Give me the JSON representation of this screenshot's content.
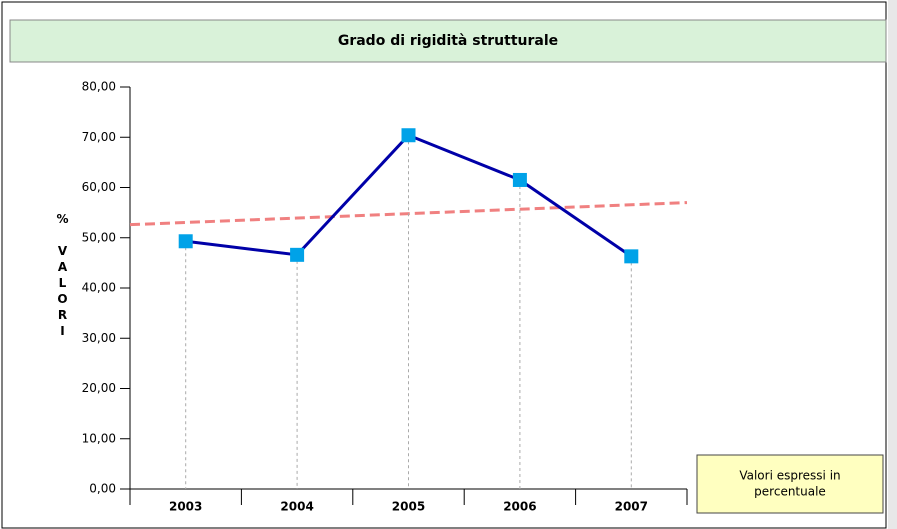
{
  "chart_data": {
    "type": "line",
    "title": "Grado di rigidità strutturale",
    "ylabel": "% VALORI",
    "categories": [
      "2003",
      "2004",
      "2005",
      "2006",
      "2007"
    ],
    "series": [
      {
        "color": "#0000a8",
        "marker_color": "#00a2e8",
        "values": [
          49.3,
          46.6,
          70.4,
          61.5,
          46.3
        ]
      }
    ],
    "trend_line": {
      "color": "#f08080",
      "values": [
        52.6,
        57.0
      ]
    },
    "ylim": [
      0,
      80
    ],
    "yticks": [
      {
        "value": 0,
        "label": "0,00"
      },
      {
        "value": 10,
        "label": "10,00"
      },
      {
        "value": 20,
        "label": "20,00"
      },
      {
        "value": 30,
        "label": "30,00"
      },
      {
        "value": 40,
        "label": "40,00"
      },
      {
        "value": 50,
        "label": "50,00"
      },
      {
        "value": 60,
        "label": "60,00"
      },
      {
        "value": 70,
        "label": "70,00"
      },
      {
        "value": 80,
        "label": "80,00"
      }
    ],
    "note": [
      "Valori espressi in",
      "percentuale"
    ]
  }
}
